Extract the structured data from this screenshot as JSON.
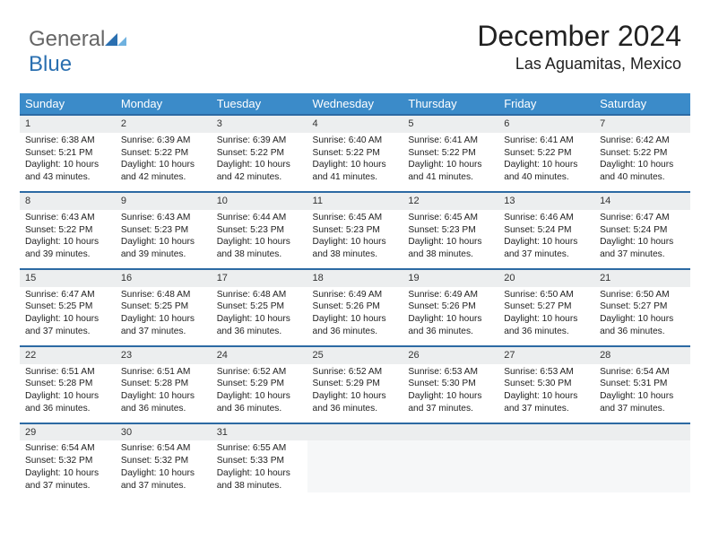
{
  "logo": {
    "text_a": "General",
    "text_b": "Blue"
  },
  "header": {
    "month": "December 2024",
    "location": "Las Aguamitas, Mexico"
  },
  "colors": {
    "header_bg": "#3b8bc9",
    "row_rule": "#2c6aa3",
    "daynum_bg": "#eceeef",
    "logo_blue": "#2a6fb0"
  },
  "weekdays": [
    "Sunday",
    "Monday",
    "Tuesday",
    "Wednesday",
    "Thursday",
    "Friday",
    "Saturday"
  ],
  "days": [
    {
      "n": "1",
      "sr": "6:38 AM",
      "ss": "5:21 PM",
      "dl": "10 hours and 43 minutes."
    },
    {
      "n": "2",
      "sr": "6:39 AM",
      "ss": "5:22 PM",
      "dl": "10 hours and 42 minutes."
    },
    {
      "n": "3",
      "sr": "6:39 AM",
      "ss": "5:22 PM",
      "dl": "10 hours and 42 minutes."
    },
    {
      "n": "4",
      "sr": "6:40 AM",
      "ss": "5:22 PM",
      "dl": "10 hours and 41 minutes."
    },
    {
      "n": "5",
      "sr": "6:41 AM",
      "ss": "5:22 PM",
      "dl": "10 hours and 41 minutes."
    },
    {
      "n": "6",
      "sr": "6:41 AM",
      "ss": "5:22 PM",
      "dl": "10 hours and 40 minutes."
    },
    {
      "n": "7",
      "sr": "6:42 AM",
      "ss": "5:22 PM",
      "dl": "10 hours and 40 minutes."
    },
    {
      "n": "8",
      "sr": "6:43 AM",
      "ss": "5:22 PM",
      "dl": "10 hours and 39 minutes."
    },
    {
      "n": "9",
      "sr": "6:43 AM",
      "ss": "5:23 PM",
      "dl": "10 hours and 39 minutes."
    },
    {
      "n": "10",
      "sr": "6:44 AM",
      "ss": "5:23 PM",
      "dl": "10 hours and 38 minutes."
    },
    {
      "n": "11",
      "sr": "6:45 AM",
      "ss": "5:23 PM",
      "dl": "10 hours and 38 minutes."
    },
    {
      "n": "12",
      "sr": "6:45 AM",
      "ss": "5:23 PM",
      "dl": "10 hours and 38 minutes."
    },
    {
      "n": "13",
      "sr": "6:46 AM",
      "ss": "5:24 PM",
      "dl": "10 hours and 37 minutes."
    },
    {
      "n": "14",
      "sr": "6:47 AM",
      "ss": "5:24 PM",
      "dl": "10 hours and 37 minutes."
    },
    {
      "n": "15",
      "sr": "6:47 AM",
      "ss": "5:25 PM",
      "dl": "10 hours and 37 minutes."
    },
    {
      "n": "16",
      "sr": "6:48 AM",
      "ss": "5:25 PM",
      "dl": "10 hours and 37 minutes."
    },
    {
      "n": "17",
      "sr": "6:48 AM",
      "ss": "5:25 PM",
      "dl": "10 hours and 36 minutes."
    },
    {
      "n": "18",
      "sr": "6:49 AM",
      "ss": "5:26 PM",
      "dl": "10 hours and 36 minutes."
    },
    {
      "n": "19",
      "sr": "6:49 AM",
      "ss": "5:26 PM",
      "dl": "10 hours and 36 minutes."
    },
    {
      "n": "20",
      "sr": "6:50 AM",
      "ss": "5:27 PM",
      "dl": "10 hours and 36 minutes."
    },
    {
      "n": "21",
      "sr": "6:50 AM",
      "ss": "5:27 PM",
      "dl": "10 hours and 36 minutes."
    },
    {
      "n": "22",
      "sr": "6:51 AM",
      "ss": "5:28 PM",
      "dl": "10 hours and 36 minutes."
    },
    {
      "n": "23",
      "sr": "6:51 AM",
      "ss": "5:28 PM",
      "dl": "10 hours and 36 minutes."
    },
    {
      "n": "24",
      "sr": "6:52 AM",
      "ss": "5:29 PM",
      "dl": "10 hours and 36 minutes."
    },
    {
      "n": "25",
      "sr": "6:52 AM",
      "ss": "5:29 PM",
      "dl": "10 hours and 36 minutes."
    },
    {
      "n": "26",
      "sr": "6:53 AM",
      "ss": "5:30 PM",
      "dl": "10 hours and 37 minutes."
    },
    {
      "n": "27",
      "sr": "6:53 AM",
      "ss": "5:30 PM",
      "dl": "10 hours and 37 minutes."
    },
    {
      "n": "28",
      "sr": "6:54 AM",
      "ss": "5:31 PM",
      "dl": "10 hours and 37 minutes."
    },
    {
      "n": "29",
      "sr": "6:54 AM",
      "ss": "5:32 PM",
      "dl": "10 hours and 37 minutes."
    },
    {
      "n": "30",
      "sr": "6:54 AM",
      "ss": "5:32 PM",
      "dl": "10 hours and 37 minutes."
    },
    {
      "n": "31",
      "sr": "6:55 AM",
      "ss": "5:33 PM",
      "dl": "10 hours and 38 minutes."
    }
  ],
  "labels": {
    "sunrise": "Sunrise: ",
    "sunset": "Sunset: ",
    "daylight": "Daylight: "
  },
  "grid": {
    "start_offset": 0,
    "total_cells": 35
  }
}
